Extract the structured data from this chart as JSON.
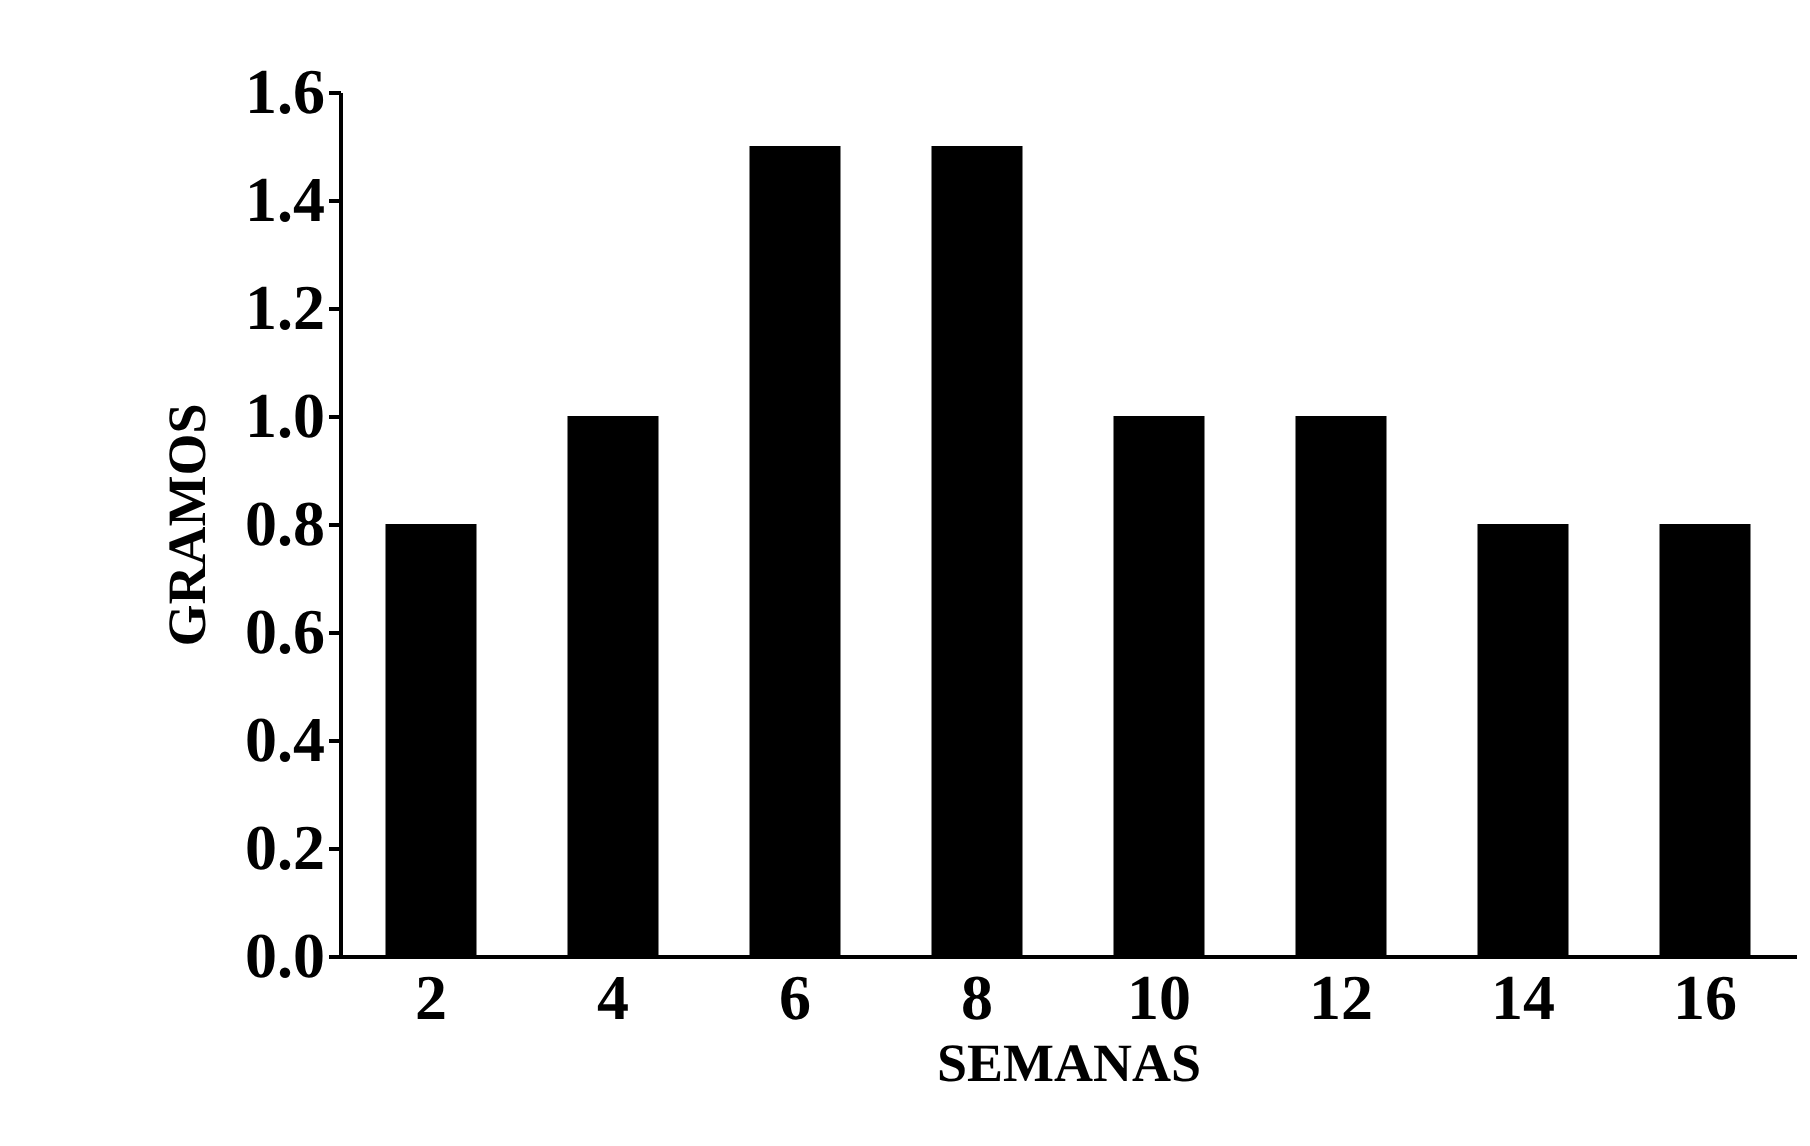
{
  "chart_data": {
    "type": "bar",
    "xlabel": "SEMANAS",
    "ylabel": "GRAMOS",
    "categories": [
      "2",
      "4",
      "6",
      "8",
      "10",
      "12",
      "14",
      "16"
    ],
    "values": [
      0.8,
      1.0,
      1.5,
      1.5,
      1.0,
      1.0,
      0.8,
      0.8
    ],
    "color": "#000000",
    "ylim": [
      0,
      1.6
    ],
    "yticks": [
      {
        "value": 0,
        "label": "0.0"
      },
      0.2,
      0.4,
      0.6,
      0.8,
      {
        "value": 1,
        "label": "1.0"
      },
      1.2,
      1.4,
      1.6
    ],
    "grid": false
  }
}
